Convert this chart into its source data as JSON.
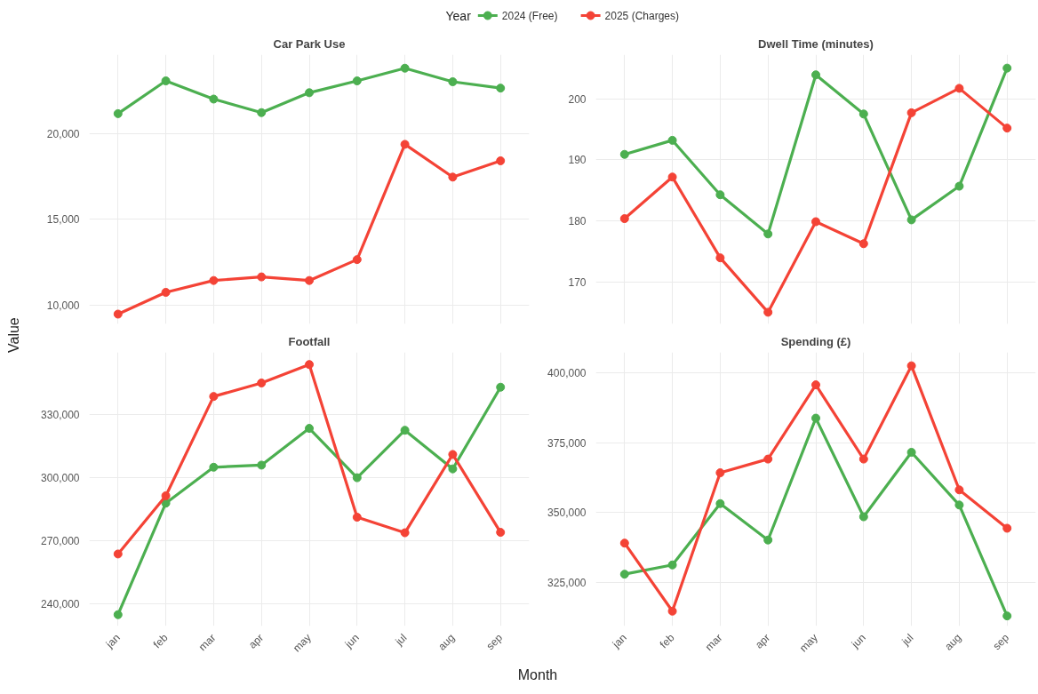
{
  "chart_data": [
    {
      "type": "line",
      "title": "Car Park Use",
      "ylabel": "Value",
      "marker": "circle",
      "line_style": "solid",
      "grid": true,
      "tick_labels": "y",
      "categories": [
        null,
        null,
        null,
        null,
        null,
        null,
        null,
        null,
        null
      ],
      "ylim": [
        8900,
        24600
      ],
      "yticks": [
        {
          "value": 10000,
          "label": "10,000"
        },
        {
          "value": 15000,
          "label": "15,000"
        },
        {
          "value": 20000,
          "label": "20,000"
        }
      ],
      "series": [
        {
          "color": "#4caf50",
          "values": [
            21160,
            23070,
            22010,
            21220,
            22380,
            23070,
            23810,
            23020,
            22650
          ]
        },
        {
          "color": "#f44336",
          "values": [
            9470,
            10740,
            11430,
            11640,
            11430,
            12650,
            19370,
            17460,
            18410
          ]
        }
      ]
    },
    {
      "type": "line",
      "title": "Dwell Time (minutes)",
      "legend": "top",
      "legend_title": "Year",
      "marker": "circle",
      "line_style": "solid",
      "grid": true,
      "tick_labels": "y",
      "categories": [
        null,
        null,
        null,
        null,
        null,
        null,
        null,
        null,
        null
      ],
      "ylim": [
        163.2,
        207.2
      ],
      "yticks": [
        170,
        180,
        190,
        200
      ],
      "series": [
        {
          "name": "2024 (Free)",
          "color": "#4caf50",
          "values": [
            190.9,
            193.2,
            184.3,
            177.9,
            203.9,
            197.5,
            180.2,
            185.7,
            205.0
          ]
        },
        {
          "name": "2025 (Charges)",
          "color": "#f44336",
          "values": [
            180.4,
            187.2,
            174.0,
            165.1,
            179.9,
            176.3,
            197.7,
            201.7,
            195.2
          ]
        }
      ]
    },
    {
      "type": "line",
      "title": "Footfall",
      "marker": "circle",
      "line_style": "solid",
      "grid": true,
      "categories": [
        "jan",
        "feb",
        "mar",
        "apr",
        "may",
        "jun",
        "jul",
        "aug",
        "sep"
      ],
      "ylim": [
        229400,
        359700
      ],
      "yticks": [
        {
          "value": 240000,
          "label": "240,000"
        },
        {
          "value": 270000,
          "label": "270,000"
        },
        {
          "value": 300000,
          "label": "300,000"
        },
        {
          "value": 330000,
          "label": "330,000"
        }
      ],
      "series": [
        {
          "color": "#4caf50",
          "values": [
            234800,
            287900,
            305000,
            306000,
            323500,
            300000,
            322600,
            304200,
            343100
          ]
        },
        {
          "color": "#f44336",
          "values": [
            263700,
            291400,
            338700,
            345100,
            353900,
            281200,
            273800,
            311100,
            274000
          ]
        }
      ]
    },
    {
      "type": "line",
      "title": "Spending (£)",
      "xlabel": "Month",
      "marker": "circle",
      "line_style": "solid",
      "grid": true,
      "categories": [
        "jan",
        "feb",
        "mar",
        "apr",
        "may",
        "jun",
        "jul",
        "aug",
        "sep"
      ],
      "ylim": [
        309500,
        407200
      ],
      "yticks": [
        {
          "value": 325000,
          "label": "325,000"
        },
        {
          "value": 350000,
          "label": "350,000"
        },
        {
          "value": 375000,
          "label": "375,000"
        },
        {
          "value": 400000,
          "label": "400,000"
        }
      ],
      "series": [
        {
          "color": "#4caf50",
          "values": [
            328000,
            331300,
            353200,
            340200,
            383700,
            348500,
            371500,
            352700,
            313100
          ]
        },
        {
          "color": "#f44336",
          "values": [
            339100,
            314800,
            364200,
            369100,
            395600,
            369100,
            402400,
            358100,
            344400
          ]
        }
      ]
    }
  ]
}
